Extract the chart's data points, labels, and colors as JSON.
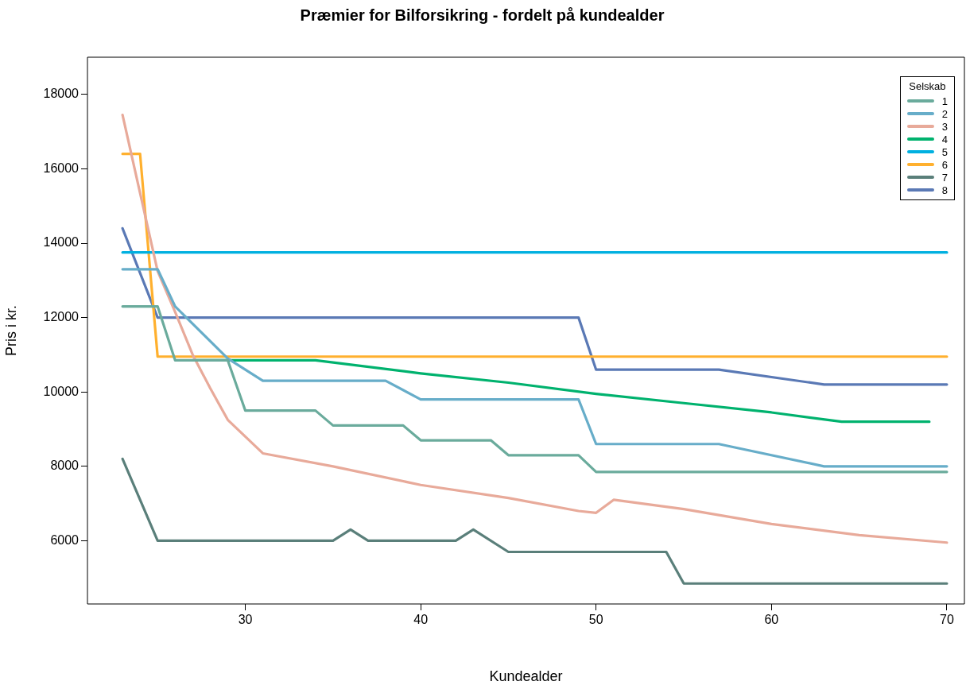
{
  "chart_data": {
    "type": "line",
    "title": "Præmier for Bilforsikring - fordelt på kundealder",
    "xlabel": "Kundealder",
    "ylabel": "Pris i kr.",
    "legend_title": "Selskab",
    "legend": "top right",
    "marker": "none",
    "line_style": "solid",
    "grid": false,
    "xlim": [
      21,
      71
    ],
    "xticks": [
      30,
      40,
      50,
      60,
      70
    ],
    "ylim": [
      4300,
      19000
    ],
    "yticks": [
      6000,
      8000,
      10000,
      12000,
      14000,
      16000,
      18000
    ],
    "series": [
      {
        "name": "1",
        "color": "#6aab9c",
        "x": [
          23,
          25,
          26,
          29,
          30,
          34,
          35,
          39,
          40,
          44,
          45,
          49,
          50,
          70
        ],
        "values": [
          12300,
          12300,
          10850,
          10850,
          9500,
          9500,
          9100,
          9100,
          8700,
          8700,
          8300,
          8300,
          7850,
          7850
        ]
      },
      {
        "name": "2",
        "color": "#67adc9",
        "x": [
          23,
          25,
          26,
          29,
          31,
          38,
          40,
          49,
          50,
          57,
          63,
          70
        ],
        "values": [
          13300,
          13300,
          12300,
          10900,
          10300,
          10300,
          9800,
          9800,
          8600,
          8600,
          8000,
          8000
        ]
      },
      {
        "name": "3",
        "color": "#e8aa9a",
        "x": [
          23,
          24,
          25,
          26,
          27,
          28,
          29,
          30,
          31,
          35,
          40,
          45,
          49,
          50,
          51,
          55,
          60,
          65,
          70
        ],
        "values": [
          17450,
          15350,
          13250,
          12150,
          11000,
          10100,
          9250,
          8800,
          8350,
          8000,
          7500,
          7150,
          6800,
          6750,
          7100,
          6850,
          6450,
          6150,
          5950
        ]
      },
      {
        "name": "4",
        "color": "#00b26e",
        "x": [
          27,
          34,
          40,
          45,
          50,
          55,
          60,
          64,
          69
        ],
        "values": [
          10850,
          10850,
          10500,
          10250,
          9950,
          9700,
          9450,
          9200,
          9200
        ]
      },
      {
        "name": "5",
        "color": "#00b0e0",
        "x": [
          23,
          70
        ],
        "values": [
          13750,
          13750
        ]
      },
      {
        "name": "6",
        "color": "#ffb02e",
        "x": [
          23,
          24,
          25,
          70
        ],
        "values": [
          16400,
          16400,
          10950,
          10950
        ]
      },
      {
        "name": "7",
        "color": "#5a7f7a",
        "x": [
          23,
          25,
          35,
          36,
          37,
          42,
          43,
          45,
          54,
          55,
          70
        ],
        "values": [
          8200,
          6000,
          6000,
          6300,
          6000,
          6000,
          6300,
          5700,
          5700,
          4850,
          4850
        ]
      },
      {
        "name": "8",
        "color": "#5a79b5",
        "x": [
          23,
          25,
          49,
          50,
          57,
          63,
          70
        ],
        "values": [
          14400,
          12000,
          12000,
          10600,
          10600,
          10200,
          10200
        ]
      }
    ]
  }
}
